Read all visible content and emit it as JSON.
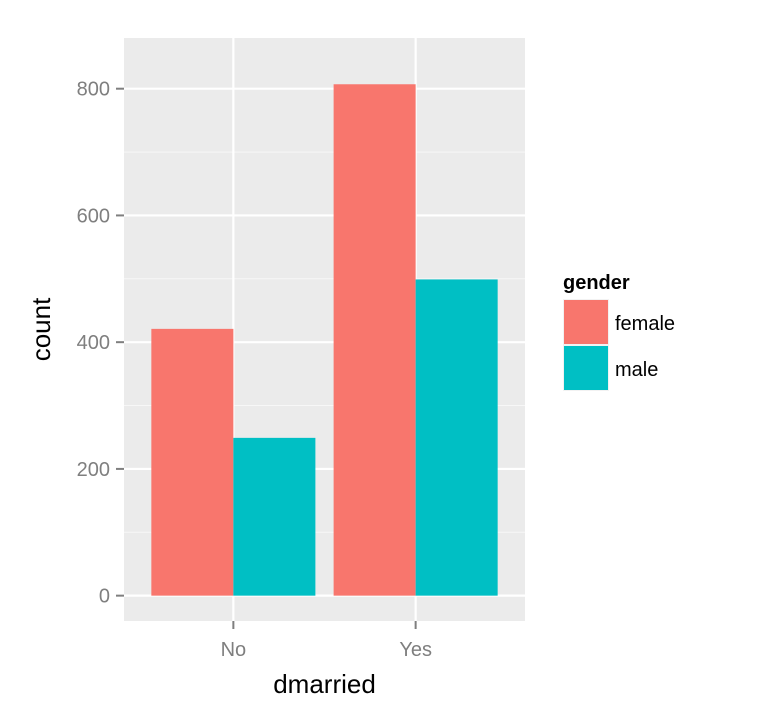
{
  "chart_data": {
    "type": "bar",
    "xlabel": "dmarried",
    "ylabel": "count",
    "categories": [
      "No",
      "Yes"
    ],
    "series": [
      {
        "name": "female",
        "values": [
          421,
          807
        ],
        "color": "#F8766D"
      },
      {
        "name": "male",
        "values": [
          249,
          499
        ],
        "color": "#00BFC4"
      }
    ],
    "ylim": [
      -40,
      880
    ],
    "yticks": [
      0,
      200,
      400,
      600,
      800
    ],
    "legend": {
      "title": "gender",
      "position": "right"
    },
    "grid": true,
    "panel_background": "#EBEBEB",
    "grid_color": "#FFFFFF"
  }
}
